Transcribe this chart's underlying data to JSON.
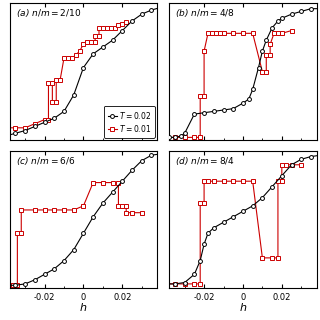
{
  "panels": [
    {
      "label": "(a)",
      "nm": "2/10",
      "nm_space": true,
      "black_x": [
        -0.04,
        -0.035,
        -0.03,
        -0.025,
        -0.02,
        -0.015,
        -0.01,
        -0.005,
        0.0,
        0.005,
        0.01,
        0.015,
        0.02,
        0.025,
        0.03,
        0.035,
        0.04
      ],
      "black_y": [
        0.03,
        0.05,
        0.07,
        0.1,
        0.13,
        0.16,
        0.21,
        0.33,
        0.53,
        0.63,
        0.68,
        0.73,
        0.8,
        0.87,
        0.92,
        0.95,
        0.97
      ],
      "red_x": [
        -0.04,
        -0.035,
        -0.03,
        -0.025,
        -0.02,
        -0.018,
        -0.018,
        -0.016,
        -0.016,
        -0.014,
        -0.014,
        -0.012,
        -0.01,
        -0.008,
        -0.006,
        -0.004,
        -0.002,
        0.0,
        0.002,
        0.004,
        0.006,
        0.006,
        0.008,
        0.008,
        0.01,
        0.012,
        0.014,
        0.016,
        0.018,
        0.02,
        0.022
      ],
      "red_y": [
        0.09,
        0.09,
        0.09,
        0.12,
        0.15,
        0.15,
        0.42,
        0.42,
        0.28,
        0.28,
        0.44,
        0.44,
        0.6,
        0.6,
        0.6,
        0.62,
        0.65,
        0.7,
        0.72,
        0.72,
        0.72,
        0.76,
        0.76,
        0.82,
        0.82,
        0.82,
        0.82,
        0.82,
        0.84,
        0.85,
        0.86
      ],
      "show_legend": true
    },
    {
      "label": "(b)",
      "nm": "4/8",
      "nm_space": true,
      "black_x": [
        -0.04,
        -0.038,
        -0.035,
        -0.032,
        -0.03,
        -0.025,
        -0.02,
        -0.015,
        -0.01,
        -0.005,
        0.0,
        0.003,
        0.005,
        0.008,
        0.01,
        0.012,
        0.015,
        0.018,
        0.02,
        0.025,
        0.03,
        0.035,
        0.04
      ],
      "black_y": [
        0.02,
        0.02,
        0.02,
        0.03,
        0.05,
        0.19,
        0.2,
        0.21,
        0.22,
        0.23,
        0.27,
        0.3,
        0.37,
        0.53,
        0.65,
        0.73,
        0.82,
        0.87,
        0.89,
        0.92,
        0.94,
        0.96,
        0.96
      ],
      "red_x": [
        -0.04,
        -0.035,
        -0.03,
        -0.025,
        -0.022,
        -0.022,
        -0.02,
        -0.02,
        -0.018,
        -0.016,
        -0.014,
        -0.012,
        -0.01,
        -0.005,
        0.0,
        0.005,
        0.01,
        0.012,
        0.012,
        0.014,
        0.014,
        0.016,
        0.018,
        0.02,
        0.025
      ],
      "red_y": [
        0.02,
        0.02,
        0.02,
        0.02,
        0.02,
        0.32,
        0.32,
        0.65,
        0.78,
        0.78,
        0.78,
        0.78,
        0.78,
        0.78,
        0.78,
        0.78,
        0.5,
        0.5,
        0.62,
        0.62,
        0.7,
        0.78,
        0.78,
        0.78,
        0.8
      ],
      "show_legend": false
    },
    {
      "label": "(c)",
      "nm": "6/6",
      "nm_space": false,
      "black_x": [
        -0.04,
        -0.035,
        -0.03,
        -0.025,
        -0.02,
        -0.015,
        -0.01,
        -0.005,
        0.0,
        0.005,
        0.01,
        0.015,
        0.02,
        0.025,
        0.03,
        0.035,
        0.04
      ],
      "black_y": [
        0.02,
        0.02,
        0.03,
        0.06,
        0.1,
        0.14,
        0.2,
        0.28,
        0.4,
        0.52,
        0.62,
        0.7,
        0.78,
        0.86,
        0.93,
        0.97,
        0.98
      ],
      "red_x": [
        -0.04,
        -0.038,
        -0.036,
        -0.034,
        -0.034,
        -0.032,
        -0.032,
        -0.025,
        -0.02,
        -0.015,
        -0.01,
        -0.005,
        0.0,
        0.005,
        0.01,
        0.015,
        0.018,
        0.018,
        0.02,
        0.022,
        0.022,
        0.025,
        0.03
      ],
      "red_y": [
        0.02,
        0.02,
        0.02,
        0.02,
        0.4,
        0.4,
        0.57,
        0.57,
        0.57,
        0.57,
        0.57,
        0.57,
        0.6,
        0.77,
        0.77,
        0.77,
        0.77,
        0.6,
        0.6,
        0.6,
        0.55,
        0.55,
        0.55
      ],
      "show_legend": false
    },
    {
      "label": "(d)",
      "nm": "8/4",
      "nm_space": true,
      "black_x": [
        -0.04,
        -0.035,
        -0.03,
        -0.025,
        -0.022,
        -0.02,
        -0.018,
        -0.015,
        -0.01,
        -0.005,
        0.0,
        0.005,
        0.01,
        0.015,
        0.02,
        0.025,
        0.03,
        0.035,
        0.04
      ],
      "black_y": [
        0.03,
        0.03,
        0.04,
        0.1,
        0.2,
        0.32,
        0.4,
        0.44,
        0.48,
        0.52,
        0.56,
        0.6,
        0.66,
        0.74,
        0.82,
        0.9,
        0.94,
        0.96,
        0.97
      ],
      "red_x": [
        -0.04,
        -0.035,
        -0.03,
        -0.025,
        -0.022,
        -0.022,
        -0.02,
        -0.02,
        -0.018,
        -0.015,
        -0.01,
        -0.005,
        0.0,
        0.005,
        0.01,
        0.015,
        0.018,
        0.018,
        0.02,
        0.02,
        0.022,
        0.025,
        0.03
      ],
      "red_y": [
        0.03,
        0.03,
        0.03,
        0.03,
        0.03,
        0.62,
        0.62,
        0.78,
        0.78,
        0.78,
        0.78,
        0.78,
        0.78,
        0.78,
        0.22,
        0.22,
        0.22,
        0.78,
        0.78,
        0.9,
        0.9,
        0.9,
        0.9
      ],
      "show_legend": false
    }
  ],
  "xlim": [
    -0.038,
    0.038
  ],
  "ylim": [
    0.0,
    1.0
  ],
  "xticks": [
    -0.02,
    0.0,
    0.02
  ],
  "xtick_labels": [
    "-0.02",
    "0",
    "0.02"
  ],
  "xlabel": "h",
  "black_color": "#000000",
  "red_color": "#cc0000",
  "bg_color": "#ffffff",
  "legend_T02": "$T = 0.02$",
  "legend_T01": "$T = 0.01$"
}
